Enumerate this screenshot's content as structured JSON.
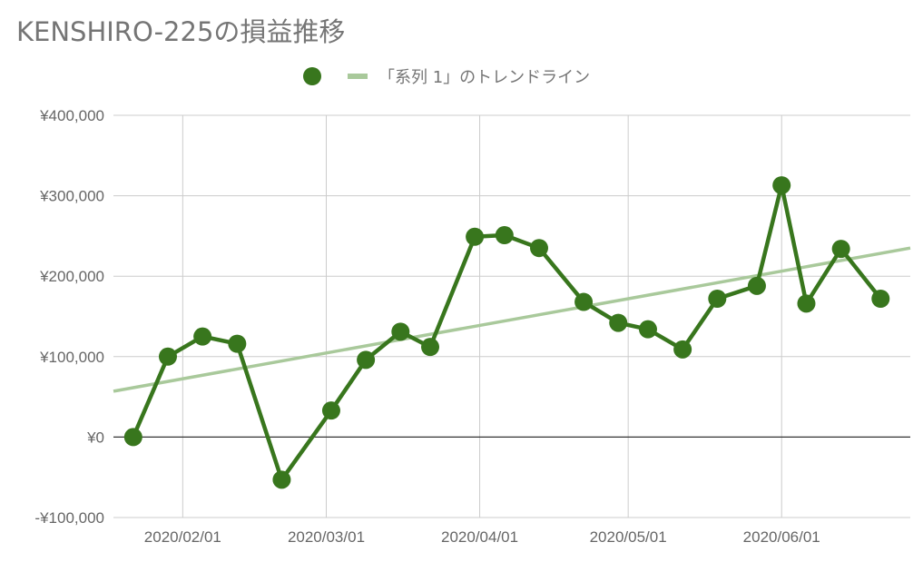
{
  "title": "KENSHIRO-225の損益推移",
  "colors": {
    "series": "#38761d",
    "trendline": "#a9c99b",
    "grid": "#cccccc",
    "zero": "#333333",
    "text": "#757575"
  },
  "chart_data": {
    "type": "line",
    "title": "KENSHIRO-225の損益推移",
    "xlabel": "",
    "ylabel": "",
    "legend_position": "top",
    "grid": true,
    "xlim": [
      "2020-01-18",
      "2020-06-27"
    ],
    "ylim": [
      -100000,
      400000
    ],
    "y_ticks": [
      400000,
      300000,
      200000,
      100000,
      0,
      -100000
    ],
    "y_tick_labels": [
      "¥400,000",
      "¥300,000",
      "¥200,000",
      "¥100,000",
      "¥0",
      "-¥100,000"
    ],
    "x_ticks": [
      "2020-02-01",
      "2020-03-01",
      "2020-04-01",
      "2020-05-01",
      "2020-06-01"
    ],
    "x_tick_labels": [
      "2020/02/01",
      "2020/03/01",
      "2020/04/01",
      "2020/05/01",
      "2020/06/01"
    ],
    "series": [
      {
        "name": "",
        "x": [
          "2020-01-22",
          "2020-01-29",
          "2020-02-05",
          "2020-02-12",
          "2020-02-21",
          "2020-03-02",
          "2020-03-09",
          "2020-03-16",
          "2020-03-22",
          "2020-03-31",
          "2020-04-06",
          "2020-04-13",
          "2020-04-22",
          "2020-04-29",
          "2020-05-05",
          "2020-05-12",
          "2020-05-19",
          "2020-05-27",
          "2020-06-01",
          "2020-06-06",
          "2020-06-13",
          "2020-06-21"
        ],
        "values": [
          0,
          100000,
          125000,
          116000,
          -53000,
          33000,
          96000,
          131000,
          112000,
          249000,
          251000,
          235000,
          168000,
          142000,
          134000,
          109000,
          172000,
          188000,
          313000,
          166000,
          234000,
          172000
        ]
      },
      {
        "name": "「系列 1」のトレンドライン",
        "type": "trendline",
        "x": [
          "2020-01-18",
          "2020-06-27"
        ],
        "values": [
          57000,
          235000
        ]
      }
    ]
  }
}
